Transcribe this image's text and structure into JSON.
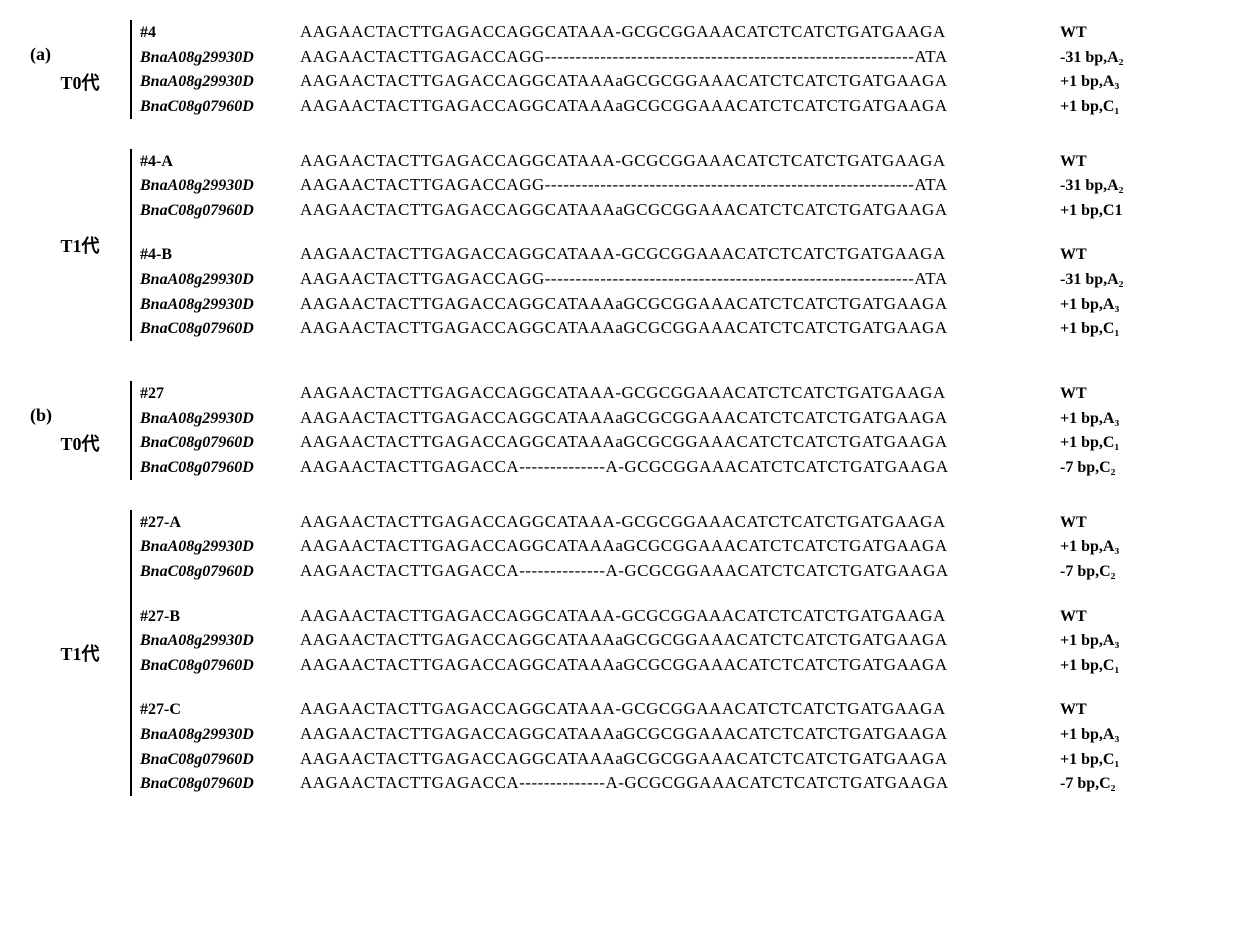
{
  "font_family": "Times New Roman",
  "background_color": "#ffffff",
  "text_color": "#000000",
  "panels": [
    {
      "label": "(a)",
      "generations": [
        {
          "gen_label": "T0代",
          "blocks": [
            {
              "rows": [
                {
                  "gene": "#4",
                  "italic": false,
                  "seq": "AAGAACTACTTGAGACCAGGCATAAA-GCGCGGAAACATCTCATCTGATGAAGA",
                  "anno": "WT"
                },
                {
                  "gene": "BnaA08g29930D",
                  "italic": true,
                  "seq": "AAGAACTACTTGAGACCAGG------------------------------------------------------------ATA",
                  "anno": "-31 bp,A₂"
                },
                {
                  "gene": "BnaA08g29930D",
                  "italic": true,
                  "seq": "AAGAACTACTTGAGACCAGGCATAAAaGCGCGGAAACATCTCATCTGATGAAGA",
                  "anno": "+1 bp,A₃"
                },
                {
                  "gene": "BnaC08g07960D",
                  "italic": true,
                  "seq": "AAGAACTACTTGAGACCAGGCATAAAaGCGCGGAAACATCTCATCTGATGAAGA",
                  "anno": "+1 bp,C₁"
                }
              ]
            }
          ]
        },
        {
          "gen_label": "T1代",
          "blocks": [
            {
              "rows": [
                {
                  "gene": "#4-A",
                  "italic": false,
                  "seq": "AAGAACTACTTGAGACCAGGCATAAA-GCGCGGAAACATCTCATCTGATGAAGA",
                  "anno": "WT"
                },
                {
                  "gene": "BnaA08g29930D",
                  "italic": true,
                  "seq": "AAGAACTACTTGAGACCAGG------------------------------------------------------------ATA",
                  "anno": "-31 bp,A₂"
                },
                {
                  "gene": "BnaC08g07960D",
                  "italic": true,
                  "seq": "AAGAACTACTTGAGACCAGGCATAAAaGCGCGGAAACATCTCATCTGATGAAGA",
                  "anno": "+1 bp,C1"
                }
              ]
            },
            {
              "rows": [
                {
                  "gene": "#4-B",
                  "italic": false,
                  "seq": "AAGAACTACTTGAGACCAGGCATAAA-GCGCGGAAACATCTCATCTGATGAAGA",
                  "anno": "WT"
                },
                {
                  "gene": "BnaA08g29930D",
                  "italic": true,
                  "seq": "AAGAACTACTTGAGACCAGG------------------------------------------------------------ATA",
                  "anno": "-31 bp,A₂"
                },
                {
                  "gene": "BnaA08g29930D",
                  "italic": true,
                  "seq": "AAGAACTACTTGAGACCAGGCATAAAaGCGCGGAAACATCTCATCTGATGAAGA",
                  "anno": "+1 bp,A₃"
                },
                {
                  "gene": "BnaC08g07960D",
                  "italic": true,
                  "seq": "AAGAACTACTTGAGACCAGGCATAAAaGCGCGGAAACATCTCATCTGATGAAGA",
                  "anno": "+1 bp,C₁"
                }
              ]
            }
          ]
        }
      ]
    },
    {
      "label": "(b)",
      "generations": [
        {
          "gen_label": "T0代",
          "blocks": [
            {
              "rows": [
                {
                  "gene": "#27",
                  "italic": false,
                  "seq": "AAGAACTACTTGAGACCAGGCATAAA-GCGCGGAAACATCTCATCTGATGAAGA",
                  "anno": "WT"
                },
                {
                  "gene": "BnaA08g29930D",
                  "italic": true,
                  "seq": "AAGAACTACTTGAGACCAGGCATAAAaGCGCGGAAACATCTCATCTGATGAAGA",
                  "anno": "+1 bp,A₃"
                },
                {
                  "gene": "BnaC08g07960D",
                  "italic": true,
                  "seq": "AAGAACTACTTGAGACCAGGCATAAAaGCGCGGAAACATCTCATCTGATGAAGA",
                  "anno": "+1 bp,C₁"
                },
                {
                  "gene": "BnaC08g07960D",
                  "italic": true,
                  "seq": "AAGAACTACTTGAGACCA--------------A-GCGCGGAAACATCTCATCTGATGAAGA",
                  "anno": "-7 bp,C₂"
                }
              ]
            }
          ]
        },
        {
          "gen_label": "T1代",
          "blocks": [
            {
              "rows": [
                {
                  "gene": "#27-A",
                  "italic": false,
                  "seq": "AAGAACTACTTGAGACCAGGCATAAA-GCGCGGAAACATCTCATCTGATGAAGA",
                  "anno": "WT"
                },
                {
                  "gene": "BnaA08g29930D",
                  "italic": true,
                  "seq": "AAGAACTACTTGAGACCAGGCATAAAaGCGCGGAAACATCTCATCTGATGAAGA",
                  "anno": "+1 bp,A₃"
                },
                {
                  "gene": "BnaC08g07960D",
                  "italic": true,
                  "seq": "AAGAACTACTTGAGACCA--------------A-GCGCGGAAACATCTCATCTGATGAAGA",
                  "anno": "-7 bp,C₂"
                }
              ]
            },
            {
              "rows": [
                {
                  "gene": "#27-B",
                  "italic": false,
                  "seq": "AAGAACTACTTGAGACCAGGCATAAA-GCGCGGAAACATCTCATCTGATGAAGA",
                  "anno": "WT"
                },
                {
                  "gene": "BnaA08g29930D",
                  "italic": true,
                  "seq": "AAGAACTACTTGAGACCAGGCATAAAaGCGCGGAAACATCTCATCTGATGAAGA",
                  "anno": "+1 bp,A₃"
                },
                {
                  "gene": "BnaC08g07960D",
                  "italic": true,
                  "seq": "AAGAACTACTTGAGACCAGGCATAAAaGCGCGGAAACATCTCATCTGATGAAGA",
                  "anno": "+1 bp,C₁"
                }
              ]
            },
            {
              "rows": [
                {
                  "gene": "#27-C",
                  "italic": false,
                  "seq": "AAGAACTACTTGAGACCAGGCATAAA-GCGCGGAAACATCTCATCTGATGAAGA",
                  "anno": "WT"
                },
                {
                  "gene": "BnaA08g29930D",
                  "italic": true,
                  "seq": "AAGAACTACTTGAGACCAGGCATAAAaGCGCGGAAACATCTCATCTGATGAAGA",
                  "anno": "+1 bp,A₃"
                },
                {
                  "gene": "BnaC08g07960D",
                  "italic": true,
                  "seq": "AAGAACTACTTGAGACCAGGCATAAAaGCGCGGAAACATCTCATCTGATGAAGA",
                  "anno": "+1 bp,C₁"
                },
                {
                  "gene": "BnaC08g07960D",
                  "italic": true,
                  "seq": "AAGAACTACTTGAGACCA--------------A-GCGCGGAAACATCTCATCTGATGAAGA",
                  "anno": "-7 bp,C₂"
                }
              ]
            }
          ]
        }
      ]
    }
  ]
}
